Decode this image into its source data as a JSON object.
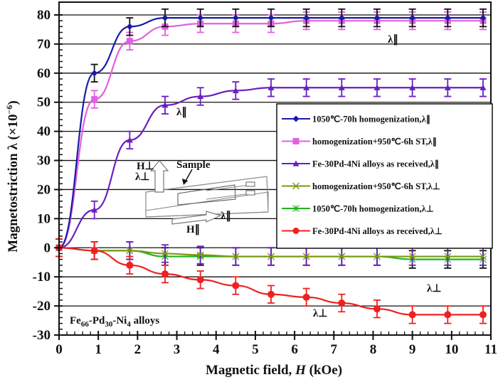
{
  "chart_data": {
    "type": "line",
    "title": "",
    "xlabel": "Magnetic field, H (kOe)",
    "ylabel": "Magnetostriction λ (×10⁻⁶)",
    "xlim": [
      0,
      11
    ],
    "ylim": [
      -30,
      80
    ],
    "x_ticks": [
      0,
      1,
      2,
      3,
      4,
      5,
      6,
      7,
      8,
      9,
      10,
      11
    ],
    "y_ticks": [
      -30,
      -20,
      -10,
      0,
      10,
      20,
      30,
      40,
      50,
      60,
      70,
      80
    ],
    "grid": "horizontal",
    "legend_position": "right-middle (inside plot)",
    "x": [
      0,
      0.9,
      1.8,
      2.7,
      3.6,
      4.5,
      5.4,
      6.3,
      7.2,
      8.1,
      9.0,
      9.9,
      10.8
    ],
    "series": [
      {
        "name": "1050℃-70h homogenization,λ∥",
        "color": "#1a1aa8",
        "marker": "diamond",
        "values": [
          0,
          60,
          76,
          79,
          79,
          79,
          79,
          79,
          79,
          79,
          79,
          79,
          79
        ]
      },
      {
        "name": "homogenization+950℃-6h ST,λ∥",
        "color": "#e060e0",
        "marker": "square",
        "values": [
          0,
          51,
          71,
          76,
          77,
          77,
          77,
          78,
          78,
          78,
          78,
          78,
          78
        ]
      },
      {
        "name": "Fe-30Pd-4Ni alloys as received,λ∥",
        "color": "#6a1fc0",
        "marker": "triangle",
        "values": [
          0,
          13,
          37,
          49,
          52,
          54,
          55,
          55,
          55,
          55,
          55,
          55,
          55
        ]
      },
      {
        "name": "homogenization+950℃-6h ST,λ⊥",
        "color": "#7a9a10",
        "marker": "x",
        "values": [
          0,
          -1,
          -1,
          -2,
          -2.5,
          -3,
          -3,
          -3,
          -3,
          -3,
          -3,
          -3,
          -3
        ]
      },
      {
        "name": "1050℃-70h homogenization,λ⊥",
        "color": "#22b022",
        "marker": "asterisk",
        "values": [
          0,
          -1,
          -1,
          -3,
          -3,
          -3,
          -3,
          -3,
          -3,
          -3,
          -4,
          -4,
          -4
        ]
      },
      {
        "name": "Fe-30Pd-4Ni alloys as received,λ⊥",
        "color": "#f02020",
        "marker": "circle",
        "values": [
          0,
          -1,
          -6,
          -9,
          -11,
          -13,
          -16,
          -17,
          -19,
          -21,
          -23,
          -23,
          -23
        ]
      }
    ],
    "error_bar": 3,
    "annotations": [
      "λ∥",
      "λ∥",
      "λ⊥",
      "λ⊥",
      "Fe66-Pd30-Ni4 alloys",
      "Sample",
      "H⊥",
      "λ⊥",
      "H∥",
      "λ∥"
    ]
  },
  "labels": {
    "xlabel_main": "Magnetic field, ",
    "xlabel_var": "H",
    "xlabel_unit": " (kOe)",
    "ylabel": "Magnetostriction λ (×10",
    "ylabel_exp": "−6",
    "ylabel_close": ")",
    "alloy_prefix": "Fe",
    "alloy_sub1": "66",
    "alloy_mid1": "-Pd",
    "alloy_sub2": "30",
    "alloy_mid2": "-Ni",
    "alloy_sub3": "4",
    "alloy_suffix": " alloys",
    "lambda_par": "λ∥",
    "lambda_perp": "λ⊥",
    "inset_sample": "Sample",
    "inset_h_perp": "H⊥",
    "inset_l_perp": "λ⊥",
    "inset_h_par": "H∥",
    "inset_l_par": "λ∥"
  }
}
